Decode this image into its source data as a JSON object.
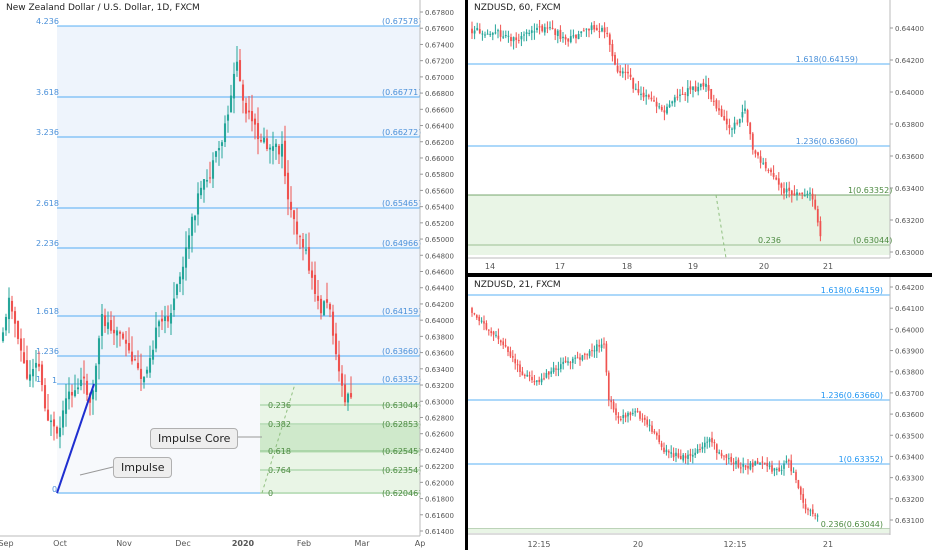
{
  "colors": {
    "up": "#26a69a",
    "down": "#ef5350",
    "fib": "#2196f3",
    "fibLabel": "#4a90d9",
    "zone": "#43a047",
    "axis": "#555555"
  },
  "panels": {
    "daily": {
      "title": "New Zealand Dollar / U.S. Dollar, 1D, FXCM",
      "y_ticks": [
        "0.67800",
        "0.67600",
        "0.67400",
        "0.67200",
        "0.67000",
        "0.66800",
        "0.66600",
        "0.66400",
        "0.66200",
        "0.66000",
        "0.65800",
        "0.65600",
        "0.65400",
        "0.65200",
        "0.65000",
        "0.64800",
        "0.64600",
        "0.64400",
        "0.64200",
        "0.64000",
        "0.63800",
        "0.63600",
        "0.63400",
        "0.63200",
        "0.63000",
        "0.62800",
        "0.62600",
        "0.62400",
        "0.62200",
        "0.62000",
        "0.61800",
        "0.61600",
        "0.61400"
      ],
      "x_labels": [
        "Sep",
        "Oct",
        "Nov",
        "Dec",
        "2020",
        "Feb",
        "Mar",
        "Ap"
      ],
      "fib_levels": [
        {
          "ratio": "4.236",
          "value": "(0.67578)"
        },
        {
          "ratio": "3.618",
          "value": "(0.66771)"
        },
        {
          "ratio": "3.236",
          "value": "(0.66272)"
        },
        {
          "ratio": "2.618",
          "value": "(0.65465)"
        },
        {
          "ratio": "2.236",
          "value": "(0.64966)"
        },
        {
          "ratio": "1.618",
          "value": "(0.64159)"
        },
        {
          "ratio": "1.236",
          "value": "(0.63660)"
        },
        {
          "ratio": "1",
          "value": "(0.63352)"
        }
      ],
      "retracements": [
        {
          "ratio": "0.236",
          "value": "(0.63044)"
        },
        {
          "ratio": "0.382",
          "value": "(0.62853)"
        },
        {
          "ratio": "0.618",
          "value": "(0.62545)"
        },
        {
          "ratio": "0.764",
          "value": "(0.62354)"
        },
        {
          "ratio": "0",
          "value": "(0.62046)"
        }
      ],
      "annotations": {
        "impulse_core": "Impulse Core",
        "impulse": "Impulse"
      }
    },
    "h1": {
      "title": "NZDUSD, 60, FXCM",
      "y_ticks": [
        "0.64400",
        "0.64200",
        "0.64000",
        "0.63800",
        "0.63600",
        "0.63400",
        "0.63200",
        "0.63000"
      ],
      "x_labels": [
        "14",
        "17",
        "18",
        "19",
        "20",
        "21"
      ],
      "levels": [
        {
          "label": "1.618(0.64159)"
        },
        {
          "label": "1.236(0.63660)"
        },
        {
          "ratio": "1",
          "value": "(0.63352)"
        },
        {
          "ratio": "0.236",
          "value": "(0.63044)"
        }
      ]
    },
    "h21": {
      "title": "NZDUSD, 21, FXCM",
      "y_ticks": [
        "0.64200",
        "0.64100",
        "0.64000",
        "0.63900",
        "0.63800",
        "0.63700",
        "0.63600",
        "0.63500",
        "0.63400",
        "0.63300",
        "0.63200",
        "0.63100"
      ],
      "x_labels": [
        "12:15",
        "20",
        "12:15",
        "21"
      ],
      "levels": [
        {
          "label": "1.618(0.64159)"
        },
        {
          "label": "1.236(0.63660)"
        },
        {
          "label": "1(0.63352)"
        },
        {
          "label": "0.236(0.63044)"
        }
      ]
    }
  }
}
